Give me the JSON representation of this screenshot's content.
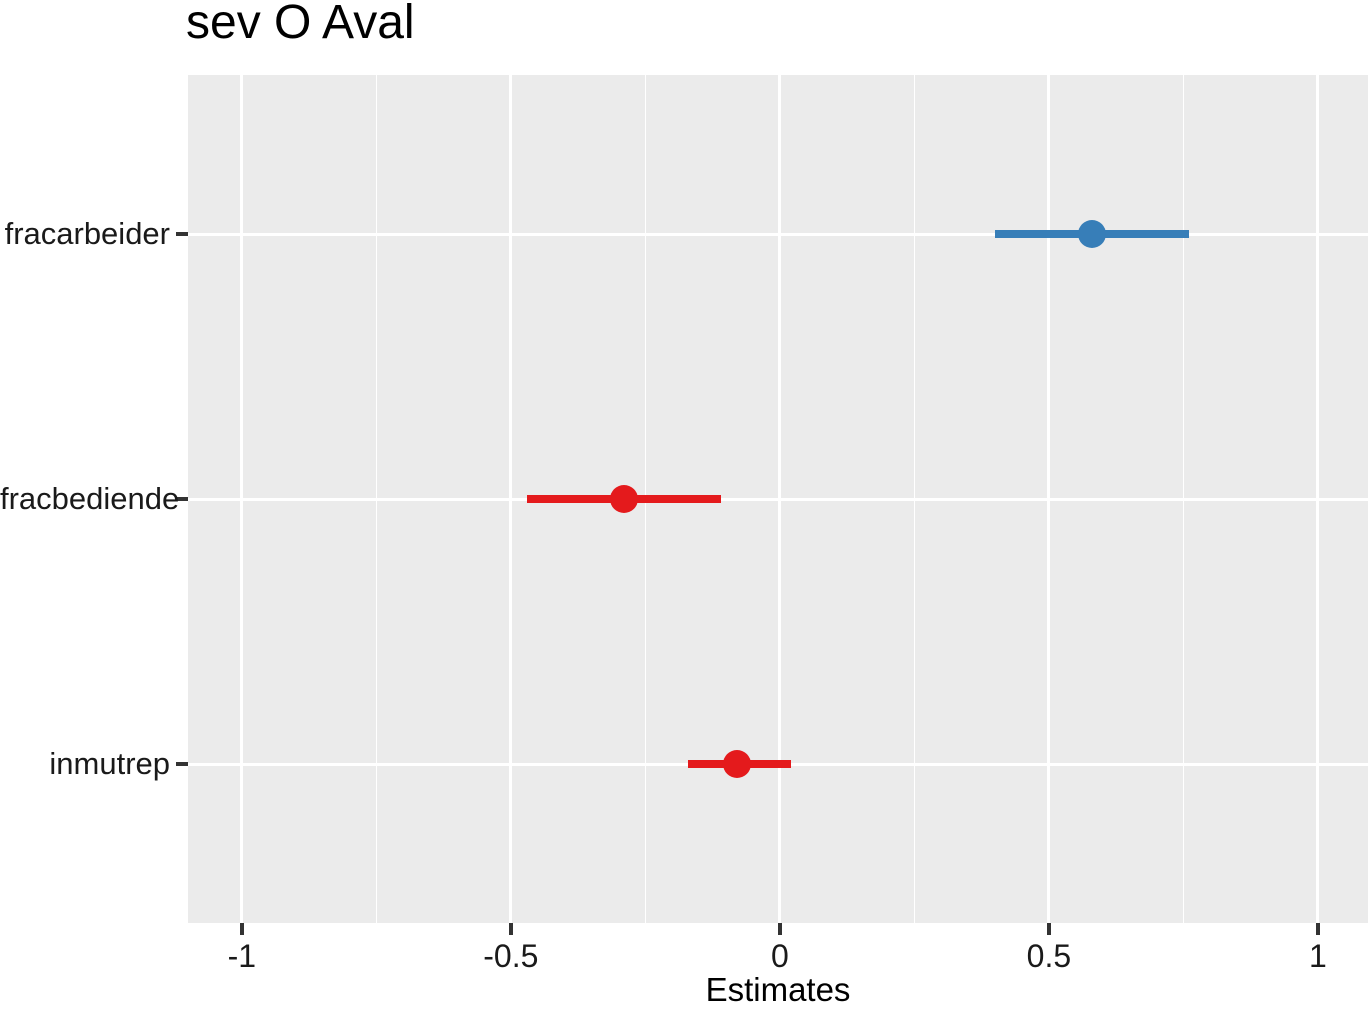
{
  "title": "sev O Aval",
  "x_axis": {
    "label": "Estimates",
    "tick_labels": [
      "-1",
      "-0.5",
      "0",
      "0.5",
      "1"
    ]
  },
  "colors": {
    "positive": "#377EB8",
    "negative": "#E41A1C",
    "panel_background": "#EBEBEB",
    "gridline": "#FFFFFF",
    "tick_mark": "#333333",
    "text": "#000000"
  },
  "chart_data": {
    "type": "scatter",
    "subtype": "coefficient-dot-whisker",
    "orientation": "horizontal",
    "title": "sev O Aval",
    "xlabel": "Estimates",
    "ylabel": "",
    "categories": [
      "fracarbeider",
      "fracbediende",
      "inmutrep"
    ],
    "series": [
      {
        "name": "estimates",
        "values": [
          0.58,
          -0.29,
          -0.08
        ],
        "ci_low": [
          0.4,
          -0.47,
          -0.17
        ],
        "ci_high": [
          0.76,
          -0.11,
          0.02
        ],
        "point_colors": [
          "#377EB8",
          "#E41A1C",
          "#E41A1C"
        ]
      }
    ],
    "xlim": [
      -1.1,
      1.093
    ],
    "x_ticks": [
      -1,
      -0.5,
      0,
      0.5,
      1
    ],
    "x_tick_labels": [
      "-1",
      "-0.5",
      "0",
      "0.5",
      "1"
    ],
    "x_minor_ticks": [
      -0.75,
      -0.25,
      0.25,
      0.75
    ],
    "grid": true,
    "legend": false
  }
}
